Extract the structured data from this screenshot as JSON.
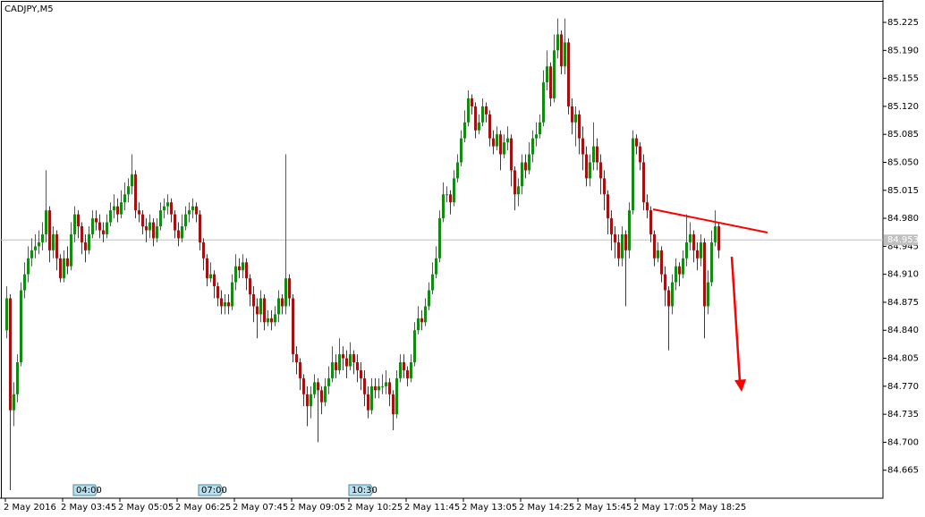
{
  "chart_data": {
    "type": "candlestick",
    "title": "CADJPY,M5",
    "up_color": "#138a13",
    "down_color": "#a31212",
    "wick_width": 1,
    "ylim": [
      84.63,
      85.253
    ],
    "yticks": [
      85.225,
      {
        "value": 85.19,
        "label": "85.190"
      },
      85.155,
      {
        "value": 85.12,
        "label": "85.120"
      },
      85.085,
      {
        "value": 85.05,
        "label": "85.050"
      },
      85.015,
      {
        "value": 84.98,
        "label": "84.980"
      },
      84.945,
      {
        "value": 84.91,
        "label": "84.910"
      },
      84.875,
      {
        "value": 84.84,
        "label": "84.840"
      },
      84.805,
      {
        "value": 84.77,
        "label": "84.770"
      },
      84.735,
      {
        "value": 84.7,
        "label": "84.700"
      },
      84.665
    ],
    "xticks": [
      {
        "value": 0,
        "label": "2 May 2016"
      },
      {
        "value": 16,
        "label": "2 May 03:45"
      },
      {
        "value": 32,
        "label": "2 May 05:05"
      },
      {
        "value": 48,
        "label": "2 May 06:25"
      },
      {
        "value": 64,
        "label": "2 May 07:45"
      },
      {
        "value": 80,
        "label": "2 May 09:05"
      },
      {
        "value": 96,
        "label": "2 May 10:25"
      },
      {
        "value": 112,
        "label": "2 May 11:45"
      },
      {
        "value": 128,
        "label": "2 May 13:05"
      },
      {
        "value": 144,
        "label": "2 May 14:25"
      },
      {
        "value": 160,
        "label": "2 May 15:45"
      },
      {
        "value": 176,
        "label": "2 May 17:05"
      },
      {
        "value": 192,
        "label": "2 May 18:25"
      }
    ],
    "markers": [
      {
        "value": 19,
        "label": "04:00"
      },
      {
        "value": 54,
        "label": "07:00"
      },
      {
        "value": 96,
        "label": "10:30"
      }
    ],
    "current_price": 84.953,
    "candles": [
      [
        84.84,
        84.895,
        84.83,
        84.88
      ],
      [
        84.88,
        84.885,
        84.64,
        84.74
      ],
      [
        84.74,
        84.775,
        84.72,
        84.76
      ],
      [
        84.76,
        84.81,
        84.75,
        84.8
      ],
      [
        84.8,
        84.9,
        84.795,
        84.89
      ],
      [
        84.89,
        84.925,
        84.88,
        84.91
      ],
      [
        84.91,
        84.945,
        84.9,
        84.93
      ],
      [
        84.93,
        84.955,
        84.92,
        84.94
      ],
      [
        84.94,
        84.96,
        84.93,
        84.945
      ],
      [
        84.945,
        84.965,
        84.935,
        84.95
      ],
      [
        84.95,
        84.975,
        84.94,
        84.96
      ],
      [
        84.96,
        85.04,
        84.95,
        84.99
      ],
      [
        84.99,
        84.995,
        84.925,
        84.94
      ],
      [
        84.94,
        84.97,
        84.93,
        84.96
      ],
      [
        84.96,
        84.965,
        84.915,
        84.93
      ],
      [
        84.93,
        84.935,
        84.9,
        84.905
      ],
      [
        84.905,
        84.94,
        84.9,
        84.93
      ],
      [
        84.93,
        84.945,
        84.91,
        84.92
      ],
      [
        84.92,
        84.975,
        84.915,
        84.96
      ],
      [
        84.96,
        84.995,
        84.95,
        84.985
      ],
      [
        84.985,
        84.99,
        84.955,
        84.97
      ],
      [
        84.97,
        84.975,
        84.935,
        84.95
      ],
      [
        84.95,
        84.96,
        84.925,
        84.94
      ],
      [
        84.94,
        84.97,
        84.935,
        84.96
      ],
      [
        84.96,
        84.99,
        84.955,
        84.98
      ],
      [
        84.98,
        84.99,
        84.965,
        84.975
      ],
      [
        84.975,
        84.985,
        84.955,
        84.965
      ],
      [
        84.965,
        84.975,
        84.95,
        84.96
      ],
      [
        84.96,
        84.985,
        84.955,
        84.975
      ],
      [
        84.975,
        85.0,
        84.97,
        84.99
      ],
      [
        84.99,
        85.01,
        84.98,
        84.995
      ],
      [
        84.995,
        85.005,
        84.975,
        84.985
      ],
      [
        84.985,
        85.015,
        84.98,
        85.0
      ],
      [
        85.0,
        85.025,
        84.99,
        85.01
      ],
      [
        85.01,
        85.03,
        85.0,
        85.02
      ],
      [
        85.02,
        85.06,
        85.01,
        85.035
      ],
      [
        85.035,
        85.04,
        84.98,
        84.99
      ],
      [
        84.99,
        85.0,
        84.975,
        84.985
      ],
      [
        84.985,
        84.99,
        84.96,
        84.97
      ],
      [
        84.97,
        84.98,
        84.95,
        84.965
      ],
      [
        84.965,
        84.985,
        84.955,
        84.975
      ],
      [
        84.975,
        84.98,
        84.945,
        84.955
      ],
      [
        84.955,
        84.98,
        84.95,
        84.97
      ],
      [
        84.97,
        85.0,
        84.965,
        84.99
      ],
      [
        84.99,
        85.005,
        84.98,
        84.995
      ],
      [
        84.995,
        85.01,
        84.985,
        85.0
      ],
      [
        85.0,
        85.005,
        84.975,
        84.985
      ],
      [
        84.985,
        84.99,
        84.955,
        84.965
      ],
      [
        84.965,
        84.975,
        84.945,
        84.955
      ],
      [
        84.955,
        84.985,
        84.95,
        84.97
      ],
      [
        84.97,
        84.995,
        84.965,
        84.985
      ],
      [
        84.985,
        85.0,
        84.975,
        84.99
      ],
      [
        84.99,
        85.005,
        84.98,
        84.995
      ],
      [
        84.995,
        85.0,
        84.975,
        84.985
      ],
      [
        84.985,
        84.99,
        84.94,
        84.95
      ],
      [
        84.95,
        84.955,
        84.915,
        84.93
      ],
      [
        84.93,
        84.935,
        84.895,
        84.905
      ],
      [
        84.905,
        84.925,
        84.9,
        84.91
      ],
      [
        84.91,
        84.915,
        84.88,
        84.895
      ],
      [
        84.895,
        84.9,
        84.87,
        84.88
      ],
      [
        84.88,
        84.89,
        84.86,
        84.87
      ],
      [
        84.87,
        84.885,
        84.86,
        84.875
      ],
      [
        84.875,
        84.885,
        84.86,
        84.87
      ],
      [
        84.87,
        84.91,
        84.865,
        84.9
      ],
      [
        84.9,
        84.935,
        84.89,
        84.92
      ],
      [
        84.92,
        84.93,
        84.905,
        84.915
      ],
      [
        84.915,
        84.935,
        84.905,
        84.925
      ],
      [
        84.925,
        84.93,
        84.89,
        84.905
      ],
      [
        84.905,
        84.91,
        84.87,
        84.885
      ],
      [
        84.885,
        84.895,
        84.85,
        84.87
      ],
      [
        84.87,
        84.88,
        84.83,
        84.86
      ],
      [
        84.86,
        84.89,
        84.85,
        84.88
      ],
      [
        84.88,
        84.885,
        84.84,
        84.85
      ],
      [
        84.85,
        84.865,
        84.845,
        84.855
      ],
      [
        84.855,
        84.865,
        84.84,
        84.85
      ],
      [
        84.85,
        84.87,
        84.845,
        84.86
      ],
      [
        84.86,
        84.89,
        84.85,
        84.88
      ],
      [
        84.88,
        84.885,
        84.86,
        84.87
      ],
      [
        84.87,
        85.06,
        84.86,
        84.905
      ],
      [
        84.905,
        84.91,
        84.87,
        84.88
      ],
      [
        84.88,
        84.885,
        84.8,
        84.81
      ],
      [
        84.81,
        84.82,
        84.785,
        84.8
      ],
      [
        84.8,
        84.805,
        84.765,
        84.78
      ],
      [
        84.78,
        84.785,
        84.745,
        84.76
      ],
      [
        84.76,
        84.77,
        84.72,
        84.745
      ],
      [
        84.745,
        84.77,
        84.73,
        84.76
      ],
      [
        84.76,
        84.785,
        84.755,
        84.775
      ],
      [
        84.775,
        84.78,
        84.7,
        84.765
      ],
      [
        84.765,
        84.77,
        84.735,
        84.75
      ],
      [
        84.75,
        84.78,
        84.745,
        84.77
      ],
      [
        84.77,
        84.795,
        84.76,
        84.78
      ],
      [
        84.78,
        84.82,
        84.775,
        84.8
      ],
      [
        84.8,
        84.81,
        84.78,
        84.79
      ],
      [
        84.79,
        84.83,
        84.785,
        84.81
      ],
      [
        84.81,
        84.82,
        84.79,
        84.805
      ],
      [
        84.805,
        84.815,
        84.78,
        84.795
      ],
      [
        84.795,
        84.825,
        84.79,
        84.81
      ],
      [
        84.81,
        84.815,
        84.785,
        84.8
      ],
      [
        84.8,
        84.81,
        84.775,
        84.79
      ],
      [
        84.79,
        84.8,
        84.765,
        84.78
      ],
      [
        84.78,
        84.79,
        84.745,
        84.76
      ],
      [
        84.76,
        84.77,
        84.73,
        84.74
      ],
      [
        84.74,
        84.78,
        84.735,
        84.77
      ],
      [
        84.77,
        84.78,
        84.755,
        84.765
      ],
      [
        84.765,
        84.78,
        84.755,
        84.77
      ],
      [
        84.77,
        84.785,
        84.76,
        84.77
      ],
      [
        84.77,
        84.79,
        84.76,
        84.775
      ],
      [
        84.775,
        84.78,
        84.745,
        84.76
      ],
      [
        84.76,
        84.765,
        84.715,
        84.735
      ],
      [
        84.735,
        84.79,
        84.73,
        84.78
      ],
      [
        84.78,
        84.81,
        84.775,
        84.8
      ],
      [
        84.8,
        84.81,
        84.78,
        84.79
      ],
      [
        84.79,
        84.795,
        84.77,
        84.78
      ],
      [
        84.78,
        84.81,
        84.775,
        84.8
      ],
      [
        84.8,
        84.85,
        84.795,
        84.84
      ],
      [
        84.84,
        84.87,
        84.835,
        84.855
      ],
      [
        84.855,
        84.865,
        84.84,
        84.85
      ],
      [
        84.85,
        84.88,
        84.845,
        84.87
      ],
      [
        84.87,
        84.9,
        84.865,
        84.89
      ],
      [
        84.89,
        84.925,
        84.885,
        84.91
      ],
      [
        84.91,
        84.945,
        84.905,
        84.93
      ],
      [
        84.93,
        84.99,
        84.925,
        84.98
      ],
      [
        84.98,
        85.025,
        84.975,
        85.01
      ],
      [
        85.01,
        85.02,
        85.0,
        85.01
      ],
      [
        85.01,
        85.015,
        84.985,
        85.0
      ],
      [
        85.0,
        85.04,
        84.995,
        85.03
      ],
      [
        85.03,
        85.06,
        85.025,
        85.05
      ],
      [
        85.05,
        85.09,
        85.045,
        85.08
      ],
      [
        85.08,
        85.115,
        85.075,
        85.1
      ],
      [
        85.1,
        85.14,
        85.095,
        85.13
      ],
      [
        85.13,
        85.135,
        85.11,
        85.12
      ],
      [
        85.12,
        85.125,
        85.08,
        85.09
      ],
      [
        85.09,
        85.11,
        85.085,
        85.1
      ],
      [
        85.1,
        85.13,
        85.095,
        85.12
      ],
      [
        85.12,
        85.125,
        85.1,
        85.11
      ],
      [
        85.11,
        85.115,
        85.07,
        85.08
      ],
      [
        85.08,
        85.09,
        85.06,
        85.07
      ],
      [
        85.07,
        85.095,
        85.065,
        85.085
      ],
      [
        85.085,
        85.09,
        85.04,
        85.06
      ],
      [
        85.06,
        85.085,
        85.055,
        85.075
      ],
      [
        85.075,
        85.095,
        85.065,
        85.08
      ],
      [
        85.08,
        85.085,
        85.02,
        85.04
      ],
      [
        85.04,
        85.045,
        84.99,
        85.01
      ],
      [
        85.01,
        85.03,
        84.995,
        85.02
      ],
      [
        85.02,
        85.06,
        85.01,
        85.05
      ],
      [
        85.05,
        85.06,
        85.03,
        85.04
      ],
      [
        85.04,
        85.075,
        85.035,
        85.06
      ],
      [
        85.06,
        85.09,
        85.05,
        85.08
      ],
      [
        85.08,
        85.1,
        85.07,
        85.085
      ],
      [
        85.085,
        85.11,
        85.08,
        85.1
      ],
      [
        85.1,
        85.165,
        85.095,
        85.15
      ],
      [
        85.15,
        85.19,
        85.14,
        85.17
      ],
      [
        85.17,
        85.175,
        85.12,
        85.13
      ],
      [
        85.13,
        85.21,
        85.125,
        85.19
      ],
      [
        85.19,
        85.23,
        85.18,
        85.21
      ],
      [
        85.21,
        85.215,
        85.16,
        85.17
      ],
      [
        85.17,
        85.23,
        85.16,
        85.2
      ],
      [
        85.2,
        85.205,
        85.11,
        85.12
      ],
      [
        85.12,
        85.13,
        85.085,
        85.1
      ],
      [
        85.1,
        85.12,
        85.07,
        85.11
      ],
      [
        85.11,
        85.115,
        85.06,
        85.08
      ],
      [
        85.08,
        85.095,
        85.04,
        85.06
      ],
      [
        85.06,
        85.07,
        85.02,
        85.03
      ],
      [
        85.03,
        85.06,
        85.02,
        85.05
      ],
      [
        85.05,
        85.1,
        85.04,
        85.07
      ],
      [
        85.07,
        85.08,
        85.04,
        85.05
      ],
      [
        85.05,
        85.06,
        85.01,
        85.03
      ],
      [
        85.03,
        85.04,
        84.99,
        85.01
      ],
      [
        85.01,
        85.015,
        84.96,
        84.98
      ],
      [
        84.98,
        84.99,
        84.94,
        84.96
      ],
      [
        84.96,
        84.97,
        84.93,
        84.95
      ],
      [
        84.95,
        84.96,
        84.92,
        84.93
      ],
      [
        84.93,
        84.97,
        84.92,
        84.96
      ],
      [
        84.96,
        84.965,
        84.87,
        84.94
      ],
      [
        84.94,
        85.0,
        84.93,
        84.99
      ],
      [
        84.99,
        85.09,
        84.985,
        85.08
      ],
      [
        85.08,
        85.085,
        85.06,
        85.07
      ],
      [
        85.07,
        85.075,
        85.04,
        85.05
      ],
      [
        85.05,
        85.06,
        84.99,
        85.0
      ],
      [
        85.0,
        85.01,
        84.98,
        84.99
      ],
      [
        84.99,
        84.995,
        84.95,
        84.96
      ],
      [
        84.96,
        84.965,
        84.92,
        84.93
      ],
      [
        84.93,
        84.95,
        84.925,
        84.94
      ],
      [
        84.94,
        84.945,
        84.9,
        84.91
      ],
      [
        84.91,
        84.92,
        84.87,
        84.89
      ],
      [
        84.89,
        84.895,
        84.815,
        84.87
      ],
      [
        84.87,
        84.91,
        84.86,
        84.9
      ],
      [
        84.9,
        84.93,
        84.89,
        84.92
      ],
      [
        84.92,
        84.925,
        84.895,
        84.91
      ],
      [
        84.91,
        84.94,
        84.905,
        84.93
      ],
      [
        84.93,
        84.985,
        84.92,
        84.95
      ],
      [
        84.95,
        84.975,
        84.94,
        84.96
      ],
      [
        84.96,
        84.965,
        84.925,
        84.94
      ],
      [
        84.94,
        84.95,
        84.915,
        84.93
      ],
      [
        84.93,
        84.96,
        84.92,
        84.95
      ],
      [
        84.95,
        84.955,
        84.83,
        84.87
      ],
      [
        84.87,
        84.915,
        84.86,
        84.9
      ],
      [
        84.9,
        84.965,
        84.895,
        84.95
      ],
      [
        84.95,
        84.99,
        84.945,
        84.97
      ],
      [
        84.97,
        84.975,
        84.93,
        84.94
      ]
    ]
  }
}
